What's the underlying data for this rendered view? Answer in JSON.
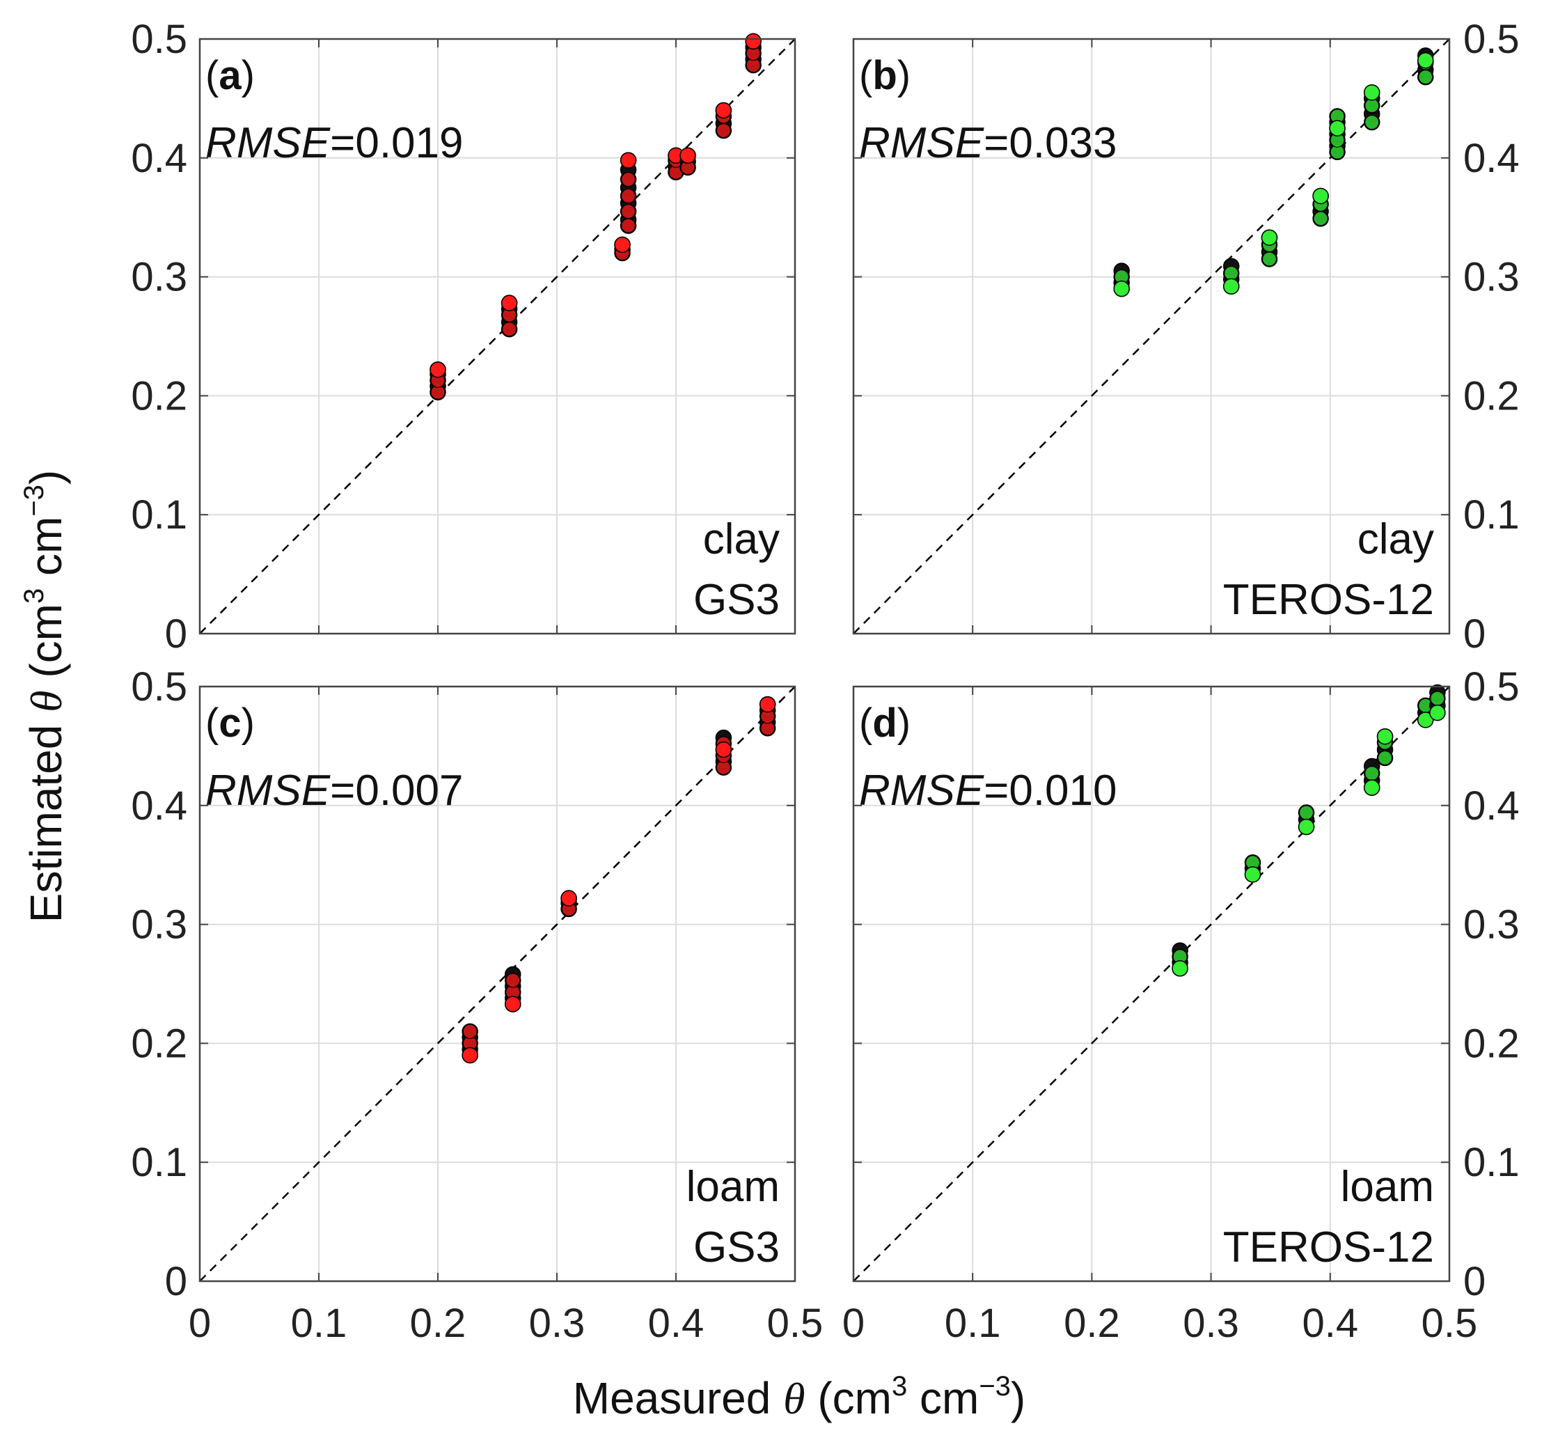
{
  "figure": {
    "x_title": {
      "prefix": "Measured ",
      "symbol": "θ",
      "unit_open": " (cm",
      "sup1": "3",
      "unit_mid": " cm",
      "sup2": "−3",
      "unit_close": ")"
    },
    "y_title": {
      "prefix": "Estimated ",
      "symbol": "θ",
      "unit_open": " (cm",
      "sup1": "3",
      "unit_mid": " cm",
      "sup2": "−3",
      "unit_close": ")"
    },
    "tick_labels": [
      "0",
      "0.1",
      "0.2",
      "0.3",
      "0.4",
      "0.5"
    ],
    "colors": {
      "gs3_marker": "#ff1a1a",
      "teros_marker": "#33ee33",
      "stack_marker": "#111111",
      "marker_edge": "#000000"
    }
  },
  "chart_data": [
    {
      "type": "scatter",
      "panel": "a",
      "letter": "a",
      "rmse_label": "RMSE",
      "rmse_value": "=0.019",
      "soil": "clay",
      "sensor": "GS3",
      "color": "#ff1a1a",
      "xlim": [
        0,
        0.5
      ],
      "ylim": [
        0,
        0.5
      ],
      "grid": true,
      "diagonal": "1:1 dashed",
      "groups": [
        {
          "x": 0.2,
          "y": [
            0.203,
            0.208,
            0.213,
            0.218,
            0.222
          ],
          "top": 0.222
        },
        {
          "x": 0.26,
          "y": [
            0.256,
            0.262,
            0.268,
            0.273,
            0.278
          ],
          "top": 0.278
        },
        {
          "x": 0.355,
          "y": [
            0.32,
            0.323,
            0.327
          ],
          "top": 0.327
        },
        {
          "x": 0.36,
          "y": [
            0.343,
            0.348,
            0.355,
            0.362,
            0.368,
            0.375,
            0.382,
            0.39,
            0.398
          ],
          "top": 0.398
        },
        {
          "x": 0.4,
          "y": [
            0.388,
            0.393,
            0.398,
            0.402
          ],
          "top": 0.402
        },
        {
          "x": 0.41,
          "y": [
            0.392,
            0.397,
            0.402
          ],
          "top": 0.402
        },
        {
          "x": 0.44,
          "y": [
            0.423,
            0.429,
            0.435,
            0.44
          ],
          "top": 0.44
        },
        {
          "x": 0.465,
          "y": [
            0.478,
            0.483,
            0.488,
            0.493,
            0.498
          ],
          "top": 0.498
        }
      ]
    },
    {
      "type": "scatter",
      "panel": "b",
      "letter": "b",
      "rmse_label": "RMSE",
      "rmse_value": "=0.033",
      "soil": "clay",
      "sensor": "TEROS-12",
      "color": "#33ee33",
      "xlim": [
        0,
        0.5
      ],
      "ylim": [
        0,
        0.5
      ],
      "grid": true,
      "diagonal": "1:1 dashed",
      "groups": [
        {
          "x": 0.225,
          "y": [
            0.29,
            0.295,
            0.3,
            0.305
          ],
          "top": 0.29
        },
        {
          "x": 0.317,
          "y": [
            0.292,
            0.298,
            0.303,
            0.309
          ],
          "top": 0.292
        },
        {
          "x": 0.349,
          "y": [
            0.315,
            0.321,
            0.327,
            0.333
          ],
          "top": 0.333
        },
        {
          "x": 0.392,
          "y": [
            0.349,
            0.355,
            0.361,
            0.368
          ],
          "top": 0.368
        },
        {
          "x": 0.406,
          "y": [
            0.405,
            0.41,
            0.415,
            0.42,
            0.425,
            0.43,
            0.435
          ],
          "top": 0.425
        },
        {
          "x": 0.435,
          "y": [
            0.43,
            0.437,
            0.444,
            0.45,
            0.455
          ],
          "top": 0.455
        },
        {
          "x": 0.48,
          "y": [
            0.468,
            0.474,
            0.48,
            0.486
          ],
          "top": 0.482
        }
      ]
    },
    {
      "type": "scatter",
      "panel": "c",
      "letter": "c",
      "rmse_label": "RMSE",
      "rmse_value": "=0.007",
      "soil": "loam",
      "sensor": "GS3",
      "color": "#ff1a1a",
      "xlim": [
        0,
        0.5
      ],
      "ylim": [
        0,
        0.5
      ],
      "grid": true,
      "diagonal": "1:1 dashed",
      "groups": [
        {
          "x": 0.227,
          "y": [
            0.19,
            0.195,
            0.2,
            0.205,
            0.21
          ],
          "top": 0.19
        },
        {
          "x": 0.263,
          "y": [
            0.233,
            0.238,
            0.243,
            0.248,
            0.253,
            0.258
          ],
          "top": 0.233
        },
        {
          "x": 0.31,
          "y": [
            0.313,
            0.318,
            0.322
          ],
          "top": 0.322
        },
        {
          "x": 0.44,
          "y": [
            0.432,
            0.437,
            0.442,
            0.447,
            0.452,
            0.457
          ],
          "top": 0.447
        },
        {
          "x": 0.477,
          "y": [
            0.465,
            0.47,
            0.475,
            0.48,
            0.485
          ],
          "top": 0.485
        }
      ]
    },
    {
      "type": "scatter",
      "panel": "d",
      "letter": "d",
      "rmse_label": "RMSE",
      "rmse_value": "=0.010",
      "soil": "loam",
      "sensor": "TEROS-12",
      "color": "#33ee33",
      "xlim": [
        0,
        0.5
      ],
      "ylim": [
        0,
        0.5
      ],
      "grid": true,
      "diagonal": "1:1 dashed",
      "groups": [
        {
          "x": 0.274,
          "y": [
            0.263,
            0.268,
            0.273,
            0.278
          ],
          "top": 0.263
        },
        {
          "x": 0.335,
          "y": [
            0.342,
            0.347,
            0.352
          ],
          "top": 0.342
        },
        {
          "x": 0.38,
          "y": [
            0.382,
            0.388,
            0.394
          ],
          "top": 0.382
        },
        {
          "x": 0.435,
          "y": [
            0.415,
            0.421,
            0.427,
            0.433
          ],
          "top": 0.415
        },
        {
          "x": 0.446,
          "y": [
            0.44,
            0.447,
            0.453,
            0.458
          ],
          "top": 0.458
        },
        {
          "x": 0.48,
          "y": [
            0.472,
            0.478,
            0.484
          ],
          "top": 0.472
        },
        {
          "x": 0.49,
          "y": [
            0.478,
            0.484,
            0.49,
            0.495
          ],
          "top": 0.478
        }
      ]
    }
  ]
}
